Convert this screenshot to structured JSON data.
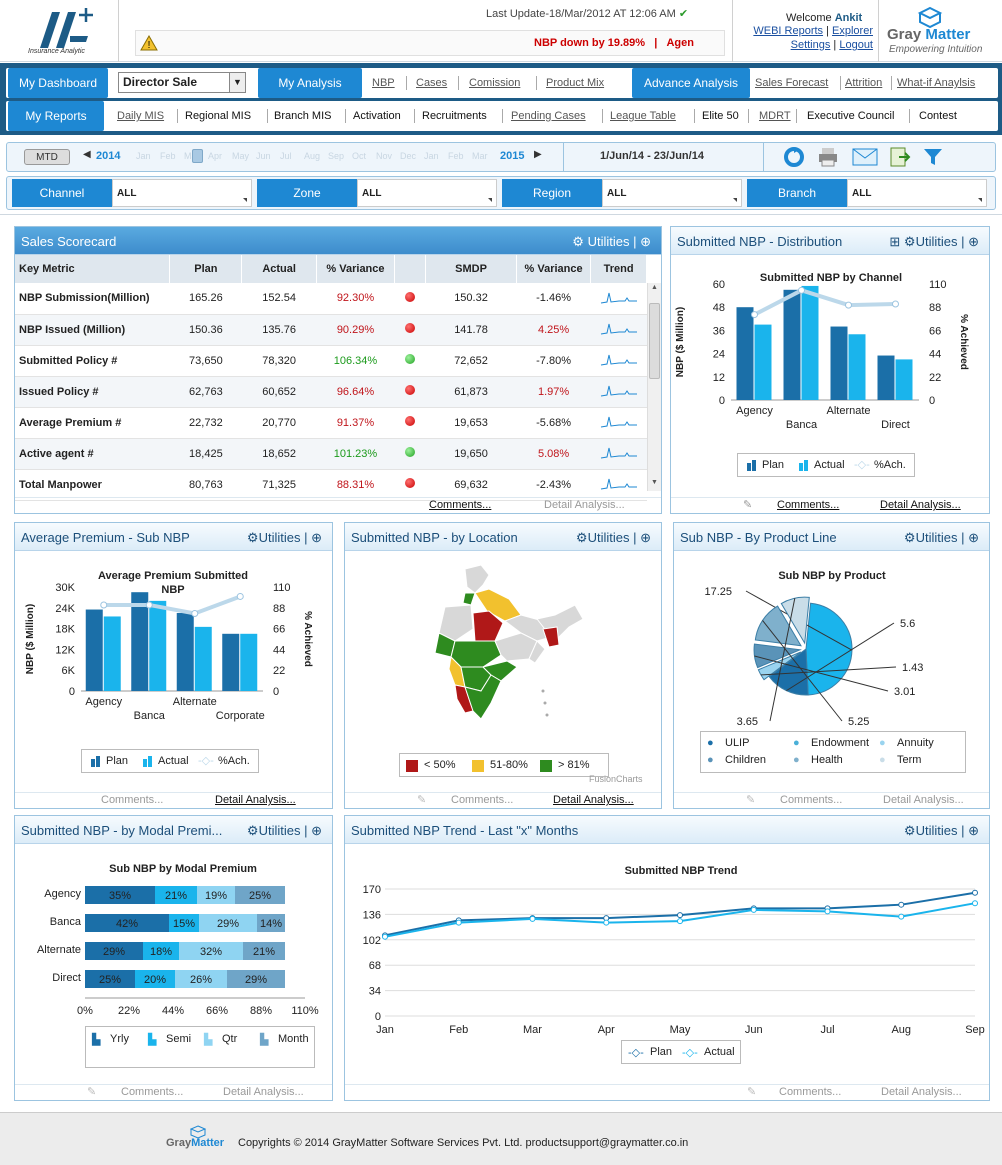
{
  "header": {
    "last_update": "Last Update-18/Mar/2012 AT 12:06 AM",
    "alert": "NBP down by 19.89%",
    "alert_tail": "Agen",
    "welcome_text": "Welcome",
    "user": "Ankit",
    "links": [
      "WEBI Reports",
      "Explorer",
      "Settings",
      "Logout"
    ],
    "logo_sub": "Insurance Analytic",
    "brand": "GrayMatter",
    "brand_gray": "Gray",
    "brand_matter": "Matter",
    "brand_tag": "Empowering Intuition"
  },
  "nav": {
    "row1": {
      "dashboard": "My Dashboard",
      "dashboard_select": "Director Sale",
      "analysis": "My Analysis",
      "analysis_links": [
        "NBP",
        "Cases",
        "Comission",
        "Product Mix"
      ],
      "advance": "Advance Analysis",
      "advance_links": [
        "Sales Forecast",
        "Attrition",
        "What-if Anaylsis"
      ]
    },
    "row2": {
      "reports": "My Reports",
      "links": [
        "Daily MIS",
        "Regional MIS",
        "Branch MIS",
        "Activation",
        "Recruitments",
        "Pending Cases",
        "League Table",
        "Elite 50",
        "MDRT",
        "Executive Council",
        "Contest"
      ]
    },
    "timebar": {
      "mtd": "MTD",
      "year_start": "2014",
      "months": [
        "Jan",
        "Feb",
        "Mar",
        "Apr",
        "May",
        "Jun",
        "Jul",
        "Aug",
        "Sep",
        "Oct",
        "Nov",
        "Dec",
        "Jan",
        "Feb",
        "Mar"
      ],
      "year_end": "2015",
      "date_range": "1/Jun/14 - 23/Jun/14"
    },
    "filters": [
      {
        "label": "Channel",
        "value": "ALL"
      },
      {
        "label": "Zone",
        "value": "ALL"
      },
      {
        "label": "Region",
        "value": "ALL"
      },
      {
        "label": "Branch",
        "value": "ALL"
      }
    ]
  },
  "common": {
    "utilities": "Utilities",
    "comments": "Comments...",
    "detail": "Detail Analysis..."
  },
  "scorecard": {
    "title": "Sales Scorecard",
    "columns": [
      "Key Metric",
      "Plan",
      "Actual",
      "% Variance",
      "",
      "SMDP",
      "% Variance",
      "Trend"
    ],
    "rows": [
      {
        "metric": "NBP Submission(Million)",
        "plan": "165.26",
        "actual": "152.54",
        "var": "92.30%",
        "var_color": "red",
        "status": "red",
        "smdp": "150.32",
        "var2": "-1.46%",
        "var2_color": "normal"
      },
      {
        "metric": "NBP Issued (Million)",
        "plan": "150.36",
        "actual": "135.76",
        "var": "90.29%",
        "var_color": "red",
        "status": "red",
        "smdp": "141.78",
        "var2": "4.25%",
        "var2_color": "red"
      },
      {
        "metric": "Submitted Policy #",
        "plan": "73,650",
        "actual": "78,320",
        "var": "106.34%",
        "var_color": "green",
        "status": "green",
        "smdp": "72,652",
        "var2": "-7.80%",
        "var2_color": "normal"
      },
      {
        "metric": "Issued Policy #",
        "plan": "62,763",
        "actual": "60,652",
        "var": "96.64%",
        "var_color": "red",
        "status": "red",
        "smdp": "61,873",
        "var2": "1.97%",
        "var2_color": "red"
      },
      {
        "metric": "Average Premium #",
        "plan": "22,732",
        "actual": "20,770",
        "var": "91.37%",
        "var_color": "red",
        "status": "red",
        "smdp": "19,653",
        "var2": "-5.68%",
        "var2_color": "normal"
      },
      {
        "metric": "Active agent #",
        "plan": "18,425",
        "actual": "18,652",
        "var": "101.23%",
        "var_color": "green",
        "status": "green",
        "smdp": "19,650",
        "var2": "5.08%",
        "var2_color": "red"
      },
      {
        "metric": "Total Manpower",
        "plan": "80,763",
        "actual": "71,325",
        "var": "88.31%",
        "var_color": "red",
        "status": "red",
        "smdp": "69,632",
        "var2": "-2.43%",
        "var2_color": "normal"
      }
    ]
  },
  "panels": {
    "distribution": "Submitted NBP - Distribution",
    "avg_premium": "Average Premium - Sub NBP",
    "location": "Submitted NBP - by Location",
    "product": "Sub NBP - By Product Line",
    "modal": "Submitted NBP - by Modal Premi...",
    "trend": "Submitted NBP Trend - Last \"x\" Months"
  },
  "legends": {
    "plan": "Plan",
    "actual": "Actual",
    "ach": "%Ach.",
    "map": [
      "< 50%",
      "51-80%",
      "> 81%"
    ],
    "fusion": "FusionCharts",
    "product": [
      "ULIP",
      "Endowment",
      "Annuity",
      "Children",
      "Health",
      "Term"
    ],
    "modal": [
      "Yrly",
      "Semi",
      "Qtr",
      "Month"
    ]
  },
  "colors": {
    "plan": "#1b6fa8",
    "actual": "#1ab4ec",
    "ach": "#bcd8ea",
    "map_red": "#b01818",
    "map_yellow": "#f2c12e",
    "map_green": "#2e8b1f",
    "grey_region": "#d8d8d8"
  },
  "chart_data": [
    {
      "type": "bar",
      "title": "Submitted NBP by Channel",
      "categories": [
        "Agency",
        "Banca",
        "Alternate",
        "Direct"
      ],
      "series": [
        {
          "name": "Plan",
          "values": [
            48,
            57,
            38,
            23
          ]
        },
        {
          "name": "Actual",
          "values": [
            39,
            59,
            34,
            21
          ]
        },
        {
          "name": "%Ach.",
          "axis": "right",
          "values": [
            81,
            104,
            90,
            91
          ]
        }
      ],
      "ylabel": "NBP ($ Million)",
      "y2label": "% Achieved",
      "ylim": [
        0,
        60
      ],
      "y2lim": [
        0,
        110
      ],
      "yticks": [
        "60",
        "48",
        "36",
        "24",
        "12",
        "0"
      ],
      "y2ticks": [
        "110",
        "88",
        "66",
        "44",
        "22",
        "0"
      ]
    },
    {
      "type": "bar",
      "title": "Average Premium Submitted NBP",
      "title_lines": [
        "Average Premium Submitted",
        "NBP"
      ],
      "categories": [
        "Agency",
        "Banca",
        "Alternate",
        "Corporate"
      ],
      "series": [
        {
          "name": "Plan",
          "values": [
            23500,
            28500,
            22500,
            16500
          ]
        },
        {
          "name": "Actual",
          "values": [
            21500,
            26000,
            18500,
            16500
          ]
        },
        {
          "name": "%Ach.",
          "axis": "right",
          "values": [
            91,
            91,
            82,
            100
          ]
        }
      ],
      "ylabel": "NBP ($ Million)",
      "y2label": "% Achieved",
      "ylim": [
        0,
        30000
      ],
      "y2lim": [
        0,
        110
      ],
      "yticks": [
        "30K",
        "24K",
        "18K",
        "12K",
        "6K",
        "0"
      ],
      "y2ticks": [
        "110",
        "88",
        "66",
        "44",
        "22",
        "0"
      ]
    },
    {
      "type": "pie",
      "title": "Sub NBP by Product",
      "labels": [
        "ULIP",
        "Endowment",
        "Annuity",
        "Children",
        "Health",
        "Term"
      ],
      "values": [
        17.25,
        5.6,
        1.43,
        3.01,
        5.25,
        3.65
      ]
    },
    {
      "type": "bar",
      "title": "Sub NBP by Modal Premium",
      "stacked": "percent",
      "categories": [
        "Agency",
        "Banca",
        "Alternate",
        "Direct"
      ],
      "series": [
        {
          "name": "Yrly",
          "values": [
            35,
            42,
            29,
            25
          ]
        },
        {
          "name": "Semi",
          "values": [
            21,
            15,
            18,
            20
          ]
        },
        {
          "name": "Qtr",
          "values": [
            19,
            29,
            32,
            26
          ]
        },
        {
          "name": "Month",
          "values": [
            25,
            14,
            21,
            29
          ]
        }
      ],
      "xticks": [
        "0%",
        "22%",
        "44%",
        "66%",
        "88%",
        "110%"
      ]
    },
    {
      "type": "line",
      "title": "Submitted NBP Trend",
      "categories": [
        "Jan",
        "Feb",
        "Mar",
        "Apr",
        "May",
        "Jun",
        "Jul",
        "Aug",
        "Sep"
      ],
      "series": [
        {
          "name": "Plan",
          "values": [
            108,
            128,
            131,
            131,
            135,
            144,
            144,
            149,
            165
          ]
        },
        {
          "name": "Actual",
          "values": [
            106,
            125,
            130,
            125,
            127,
            142,
            140,
            133,
            151
          ]
        }
      ],
      "ylim": [
        0,
        170
      ],
      "yticks": [
        "170",
        "136",
        "102",
        "68",
        "34",
        "0"
      ]
    }
  ],
  "footer": {
    "brand_gray": "Gray",
    "brand_matter": "Matter",
    "text": "Copyrights © 2014 GrayMatter Software Services Pvt. Ltd. productsupport@graymatter.co.in"
  }
}
